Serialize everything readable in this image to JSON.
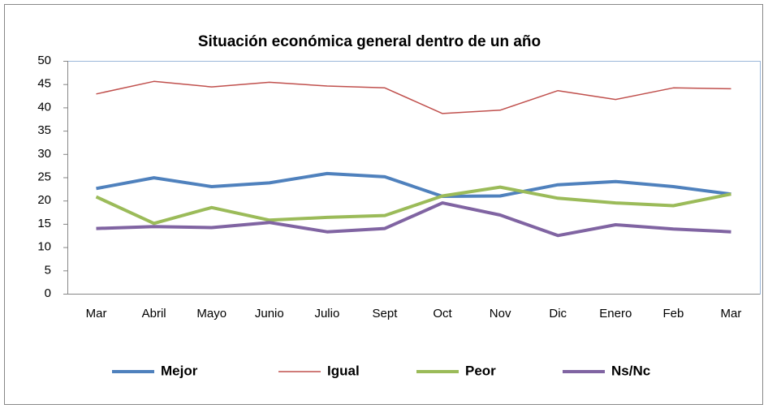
{
  "chart_data": {
    "type": "line",
    "title": "Situación económica general  dentro de un año",
    "categories": [
      "Mar",
      "Abril",
      "Mayo",
      "Junio",
      "Julio",
      "Sept",
      "Oct",
      "Nov",
      "Dic",
      "Enero",
      "Feb",
      "Mar"
    ],
    "series": [
      {
        "name": "Mejor",
        "color": "#4f81bd",
        "values": [
          22.6,
          24.9,
          23.0,
          23.8,
          25.8,
          25.1,
          20.9,
          21.0,
          23.4,
          24.1,
          23.0,
          21.4
        ]
      },
      {
        "name": "Igual",
        "color": "#c0504d",
        "values": [
          42.9,
          45.6,
          44.4,
          45.4,
          44.6,
          44.2,
          38.7,
          39.4,
          43.6,
          41.7,
          44.2,
          44.0
        ]
      },
      {
        "name": "Peor",
        "color": "#9bbb59",
        "values": [
          20.8,
          15.1,
          18.5,
          15.8,
          16.4,
          16.8,
          21.0,
          22.9,
          20.5,
          19.5,
          18.9,
          21.4
        ]
      },
      {
        "name": "Ns/Nc",
        "color": "#8064a2",
        "values": [
          14.0,
          14.4,
          14.2,
          15.3,
          13.3,
          14.0,
          19.5,
          16.9,
          12.5,
          14.8,
          13.9,
          13.3
        ]
      }
    ],
    "ylim": [
      0,
      50
    ],
    "yticks": [
      0,
      5,
      10,
      15,
      20,
      25,
      30,
      35,
      40,
      45,
      50
    ],
    "grid": false,
    "legend": "bottom"
  }
}
